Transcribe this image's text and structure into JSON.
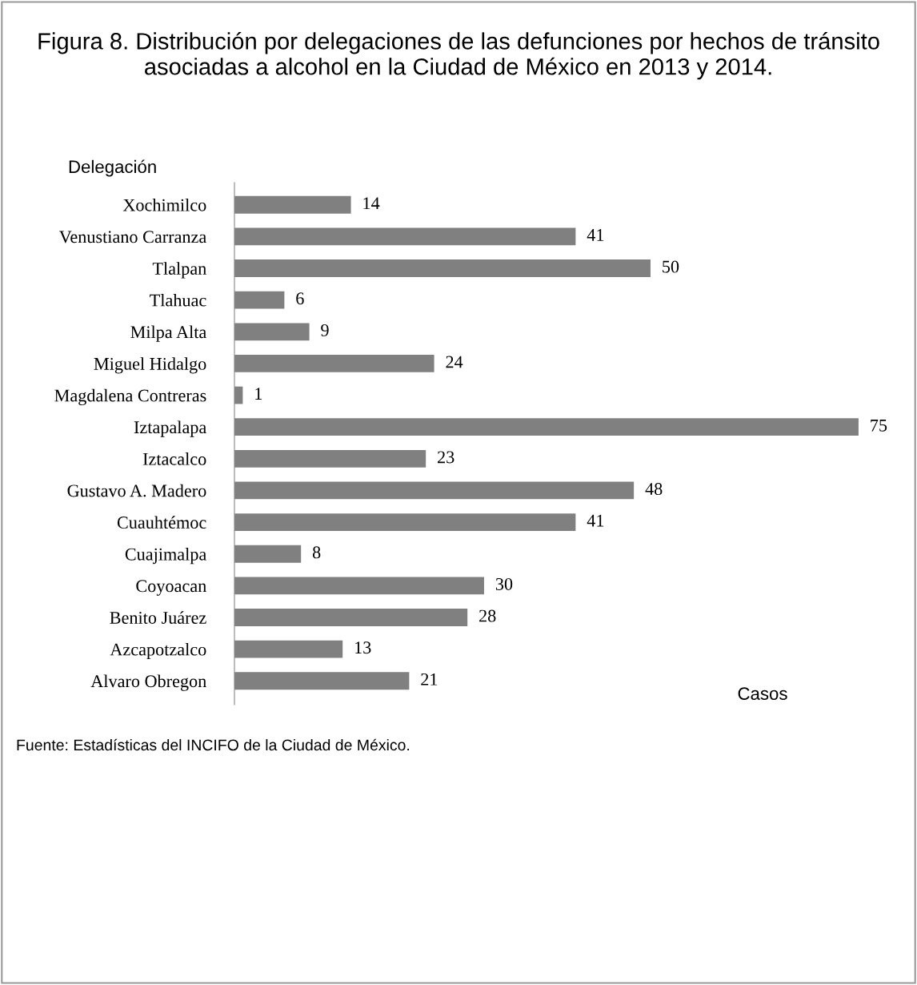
{
  "chart_data": {
    "type": "bar",
    "orientation": "horizontal",
    "title": "Figura 8. Distribución por delegaciones de las defunciones por hechos de tránsito asociadas a alcohol en la Ciudad de México en 2013 y 2014.",
    "ylabel": "Delegación",
    "xlabel": "Casos",
    "categories": [
      "Xochimilco",
      "Venustiano Carranza",
      "Tlalpan",
      "Tlahuac",
      "Milpa Alta",
      "Miguel Hidalgo",
      "Magdalena Contreras",
      "Iztapalapa",
      "Iztacalco",
      "Gustavo A. Madero",
      "Cuauhtémoc",
      "Cuajimalpa",
      "Coyoacan",
      "Benito Juárez",
      "Azcapotzalco",
      "Alvaro Obregon"
    ],
    "values": [
      14,
      41,
      50,
      6,
      9,
      24,
      1,
      75,
      23,
      48,
      41,
      8,
      30,
      28,
      13,
      21
    ],
    "color": "#808080",
    "data_labels": true,
    "grid": false,
    "legend": false,
    "tick_labels": "y",
    "annotations": [
      "Fuente: Estadísticas del INCIFO de la Ciudad de México."
    ]
  }
}
